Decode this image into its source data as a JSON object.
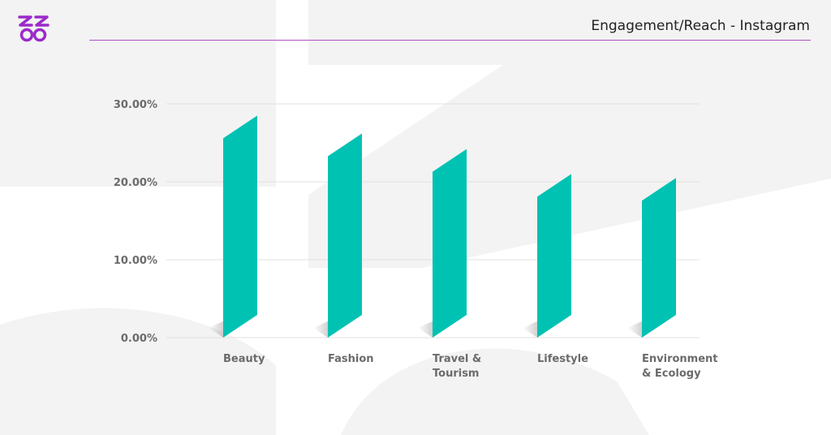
{
  "header": {
    "title": "Engagement/Reach - Instagram"
  },
  "colors": {
    "bar": "#00c2b3",
    "brand": "#9b2bc9",
    "rule": "#b04fc4",
    "gridline": "#e2e2e2",
    "background_shape": "#f3f3f3"
  },
  "logo": {
    "icon": "brand-logo-icon"
  },
  "chart_data": {
    "type": "bar",
    "title": "",
    "xlabel": "",
    "ylabel": "",
    "categories": [
      [
        "Beauty"
      ],
      [
        "Fashion"
      ],
      [
        "Travel &",
        "Tourism"
      ],
      [
        "Lifestyle"
      ],
      [
        "Environment",
        "& Ecology"
      ]
    ],
    "values": [
      28.5,
      26.2,
      24.2,
      21.0,
      20.5
    ],
    "ylim": [
      0,
      30
    ],
    "yticks": [
      0,
      10,
      20,
      30
    ],
    "ytick_labels": [
      "0.00%",
      "10.00%",
      "20.00%",
      "30.00%"
    ],
    "grid": true,
    "legend": "none"
  }
}
